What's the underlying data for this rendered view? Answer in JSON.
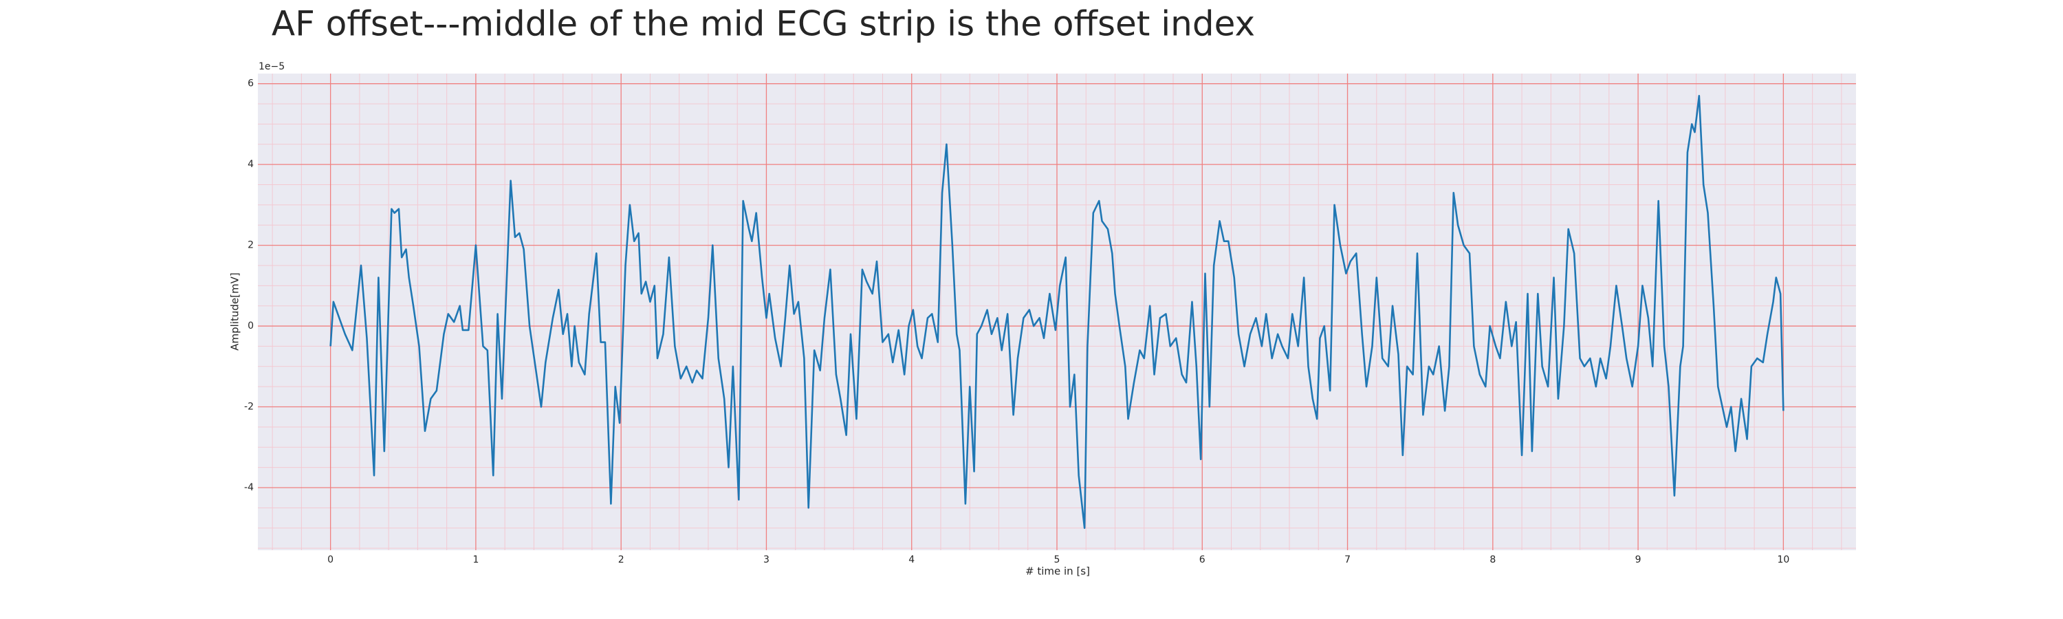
{
  "chart_data": {
    "type": "line",
    "title": "AF offset---middle of the mid ECG strip is the offset index",
    "xlabel": "# time in [s]",
    "ylabel": "Amplitude[mV]",
    "y_offset_label": "1e−5",
    "color": "#1f77b4",
    "grid": true,
    "grid_color": "#f08080",
    "minor_grid": true,
    "minor_grid_color": "#f3c9d2",
    "background": "#eaeaf2",
    "xlim": [
      -0.5,
      10.5
    ],
    "ylim": [
      -5.55,
      6.25
    ],
    "xticks": [
      0,
      1,
      2,
      3,
      4,
      5,
      6,
      7,
      8,
      9,
      10
    ],
    "yticks": [
      -4,
      -2,
      0,
      2,
      4,
      6
    ],
    "xminorticks": [
      -0.4,
      -0.2,
      0.2,
      0.4,
      0.6,
      0.8,
      1.2,
      1.4,
      1.6,
      1.8,
      2.2,
      2.4,
      2.6,
      2.8,
      3.2,
      3.4,
      3.6,
      3.8,
      4.2,
      4.4,
      4.6,
      4.8,
      5.2,
      5.4,
      5.6,
      5.8,
      6.2,
      6.4,
      6.6,
      6.8,
      7.2,
      7.4,
      7.6,
      7.8,
      8.2,
      8.4,
      8.6,
      8.8,
      9.2,
      9.4,
      9.6,
      9.8,
      10.2,
      10.4
    ],
    "yminorticks": [
      -5.5,
      -5,
      -4.5,
      -3.5,
      -3,
      -2.5,
      -1.5,
      -1,
      -0.5,
      0.5,
      1,
      1.5,
      2.5,
      3,
      3.5,
      4.5,
      5,
      5.5
    ],
    "x": [
      0.0,
      0.02,
      0.1,
      0.15,
      0.21,
      0.25,
      0.3,
      0.33,
      0.37,
      0.42,
      0.44,
      0.47,
      0.49,
      0.52,
      0.54,
      0.57,
      0.61,
      0.65,
      0.69,
      0.73,
      0.78,
      0.81,
      0.85,
      0.89,
      0.91,
      0.95,
      1.0,
      1.05,
      1.08,
      1.12,
      1.15,
      1.18,
      1.24,
      1.27,
      1.3,
      1.33,
      1.37,
      1.41,
      1.45,
      1.48,
      1.53,
      1.57,
      1.6,
      1.63,
      1.66,
      1.68,
      1.71,
      1.75,
      1.78,
      1.83,
      1.86,
      1.89,
      1.93,
      1.96,
      1.99,
      2.03,
      2.06,
      2.09,
      2.12,
      2.14,
      2.17,
      2.2,
      2.23,
      2.25,
      2.29,
      2.33,
      2.37,
      2.41,
      2.45,
      2.49,
      2.52,
      2.56,
      2.6,
      2.63,
      2.67,
      2.71,
      2.74,
      2.77,
      2.81,
      2.84,
      2.88,
      2.9,
      2.93,
      2.97,
      3.0,
      3.02,
      3.06,
      3.1,
      3.13,
      3.16,
      3.19,
      3.22,
      3.26,
      3.29,
      3.33,
      3.37,
      3.4,
      3.44,
      3.48,
      3.51,
      3.55,
      3.58,
      3.62,
      3.66,
      3.69,
      3.73,
      3.76,
      3.8,
      3.84,
      3.87,
      3.91,
      3.95,
      3.98,
      4.01,
      4.04,
      4.07,
      4.11,
      4.14,
      4.18,
      4.21,
      4.24,
      4.28,
      4.31,
      4.33,
      4.37,
      4.4,
      4.43,
      4.45,
      4.48,
      4.52,
      4.55,
      4.59,
      4.62,
      4.66,
      4.7,
      4.73,
      4.77,
      4.81,
      4.84,
      4.88,
      4.91,
      4.95,
      4.99,
      5.02,
      5.06,
      5.09,
      5.12,
      5.15,
      5.19,
      5.21,
      5.25,
      5.29,
      5.31,
      5.35,
      5.38,
      5.4,
      5.43,
      5.47,
      5.49,
      5.53,
      5.57,
      5.6,
      5.64,
      5.67,
      5.71,
      5.75,
      5.78,
      5.82,
      5.86,
      5.89,
      5.93,
      5.96,
      5.99,
      6.02,
      6.05,
      6.08,
      6.12,
      6.15,
      6.18,
      6.22,
      6.25,
      6.29,
      6.33,
      6.37,
      6.41,
      6.44,
      6.48,
      6.52,
      6.55,
      6.59,
      6.62,
      6.66,
      6.7,
      6.73,
      6.76,
      6.79,
      6.81,
      6.84,
      6.88,
      6.91,
      6.95,
      6.99,
      7.02,
      7.06,
      7.1,
      7.13,
      7.17,
      7.2,
      7.24,
      7.28,
      7.31,
      7.35,
      7.38,
      7.41,
      7.45,
      7.48,
      7.52,
      7.56,
      7.59,
      7.63,
      7.67,
      7.7,
      7.73,
      7.76,
      7.8,
      7.84,
      7.87,
      7.91,
      7.95,
      7.98,
      8.02,
      8.05,
      8.09,
      8.13,
      8.16,
      8.2,
      8.24,
      8.27,
      8.31,
      8.34,
      8.38,
      8.42,
      8.45,
      8.49,
      8.52,
      8.56,
      8.6,
      8.63,
      8.67,
      8.71,
      8.74,
      8.78,
      8.81,
      8.85,
      8.89,
      8.92,
      8.96,
      9.0,
      9.03,
      9.07,
      9.1,
      9.14,
      9.18,
      9.21,
      9.25,
      9.29,
      9.31,
      9.34,
      9.37,
      9.39,
      9.42,
      9.45,
      9.48,
      9.52,
      9.55,
      9.58,
      9.61,
      9.64,
      9.67,
      9.71,
      9.75,
      9.78,
      9.82,
      9.86,
      9.89,
      9.93,
      9.95,
      9.98,
      10.0
    ],
    "values": [
      -0.5,
      0.6,
      -0.2,
      -0.6,
      1.5,
      -0.3,
      -3.7,
      1.2,
      -3.1,
      2.9,
      2.8,
      2.9,
      1.7,
      1.9,
      1.2,
      0.5,
      -0.5,
      -2.6,
      -1.8,
      -1.6,
      -0.2,
      0.3,
      0.1,
      0.5,
      -0.1,
      -0.1,
      2.0,
      -0.5,
      -0.6,
      -3.7,
      0.3,
      -1.8,
      3.6,
      2.2,
      2.3,
      1.9,
      0.0,
      -1.0,
      -2.0,
      -0.9,
      0.2,
      0.9,
      -0.2,
      0.3,
      -1.0,
      0.0,
      -0.9,
      -1.2,
      0.3,
      1.8,
      -0.4,
      -0.4,
      -4.4,
      -1.5,
      -2.4,
      1.5,
      3.0,
      2.1,
      2.3,
      0.8,
      1.1,
      0.6,
      1.0,
      -0.8,
      -0.2,
      1.7,
      -0.5,
      -1.3,
      -1.0,
      -1.4,
      -1.1,
      -1.3,
      0.2,
      2.0,
      -0.8,
      -1.8,
      -3.5,
      -1.0,
      -4.3,
      3.1,
      2.4,
      2.1,
      2.8,
      1.2,
      0.2,
      0.8,
      -0.3,
      -1.0,
      0.2,
      1.5,
      0.3,
      0.6,
      -0.8,
      -4.5,
      -0.6,
      -1.1,
      0.2,
      1.4,
      -1.2,
      -1.8,
      -2.7,
      -0.2,
      -2.3,
      1.4,
      1.1,
      0.8,
      1.6,
      -0.4,
      -0.2,
      -0.9,
      -0.1,
      -1.2,
      0.0,
      0.4,
      -0.5,
      -0.8,
      0.2,
      0.3,
      -0.4,
      3.3,
      4.5,
      2.0,
      -0.2,
      -0.6,
      -4.4,
      -1.5,
      -3.6,
      -0.2,
      0.0,
      0.4,
      -0.2,
      0.2,
      -0.6,
      0.3,
      -2.2,
      -0.8,
      0.2,
      0.4,
      0.0,
      0.2,
      -0.3,
      0.8,
      -0.1,
      1.0,
      1.7,
      -2.0,
      -1.2,
      -3.7,
      -5.0,
      -0.5,
      2.8,
      3.1,
      2.6,
      2.4,
      1.8,
      0.8,
      0.0,
      -1.0,
      -2.3,
      -1.4,
      -0.6,
      -0.8,
      0.5,
      -1.2,
      0.2,
      0.3,
      -0.5,
      -0.3,
      -1.2,
      -1.4,
      0.6,
      -1.0,
      -3.3,
      1.3,
      -2.0,
      1.5,
      2.6,
      2.1,
      2.1,
      1.2,
      -0.2,
      -1.0,
      -0.2,
      0.2,
      -0.5,
      0.3,
      -0.8,
      -0.2,
      -0.5,
      -0.8,
      0.3,
      -0.5,
      1.2,
      -1.0,
      -1.8,
      -2.3,
      -0.3,
      0.0,
      -1.6,
      3.0,
      2.0,
      1.3,
      1.6,
      1.8,
      -0.2,
      -1.5,
      -0.5,
      1.2,
      -0.8,
      -1.0,
      0.5,
      -0.7,
      -3.2,
      -1.0,
      -1.2,
      1.8,
      -2.2,
      -1.0,
      -1.2,
      -0.5,
      -2.1,
      -1.0,
      3.3,
      2.5,
      2.0,
      1.8,
      -0.5,
      -1.2,
      -1.5,
      0.0,
      -0.5,
      -0.8,
      0.6,
      -0.5,
      0.1,
      -3.2,
      0.8,
      -3.1,
      0.8,
      -1.0,
      -1.5,
      1.2,
      -1.8,
      0.0,
      2.4,
      1.8,
      -0.8,
      -1.0,
      -0.8,
      -1.5,
      -0.8,
      -1.3,
      -0.5,
      1.0,
      0.0,
      -0.8,
      -1.5,
      -0.5,
      1.0,
      0.2,
      -1.0,
      3.1,
      -0.5,
      -1.5,
      -4.2,
      -1.0,
      -0.5,
      4.3,
      5.0,
      4.8,
      5.7,
      3.5,
      2.8,
      0.5,
      -1.5,
      -2.0,
      -2.5,
      -2.0,
      -3.1,
      -1.8,
      -2.8,
      -1.0,
      -0.8,
      -0.9,
      -0.2,
      0.6,
      1.2,
      0.8,
      -2.1
    ]
  }
}
